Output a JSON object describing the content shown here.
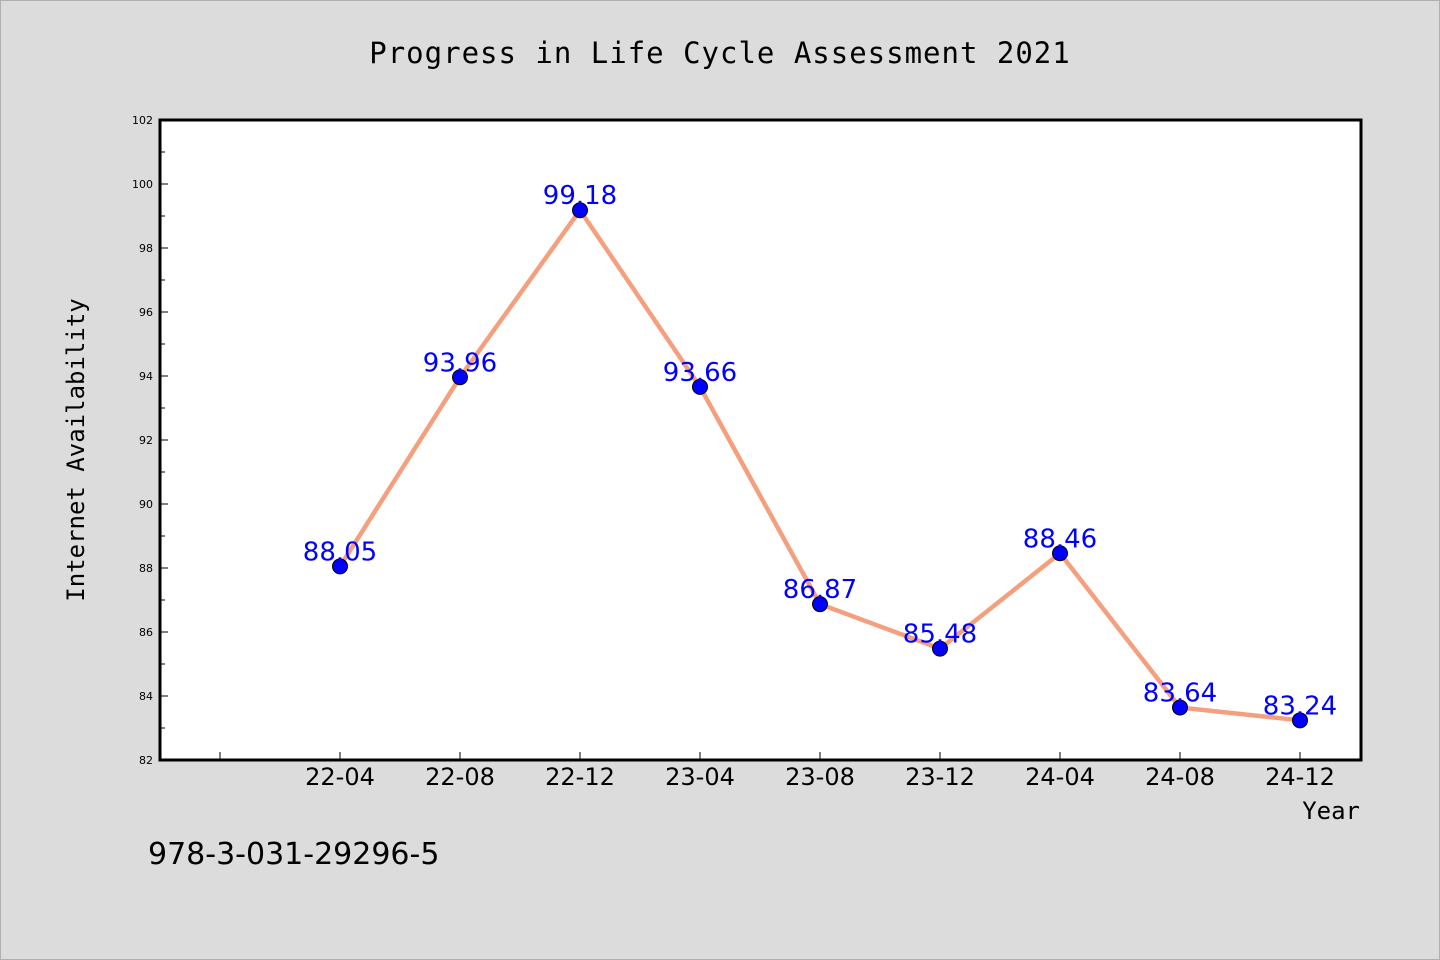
{
  "chart_data": {
    "type": "line",
    "title": "Progress in Life Cycle Assessment 2021",
    "xlabel": "Year",
    "ylabel": "Internet Availability",
    "categories": [
      "22-04",
      "22-08",
      "22-12",
      "23-04",
      "23-08",
      "23-12",
      "24-04",
      "24-08",
      "24-12"
    ],
    "series": [
      {
        "values": [
          88.05,
          93.96,
          99.18,
          93.66,
          86.87,
          85.48,
          88.46,
          83.64,
          83.24
        ]
      }
    ],
    "data_labels": [
      "88.05",
      "93.96",
      "99.18",
      "93.66",
      "86.87",
      "85.48",
      "88.46",
      "83.64",
      "83.24"
    ],
    "ylim": [
      82,
      102
    ],
    "yticks": [
      82,
      84,
      86,
      88,
      90,
      92,
      94,
      96,
      98,
      100,
      102
    ],
    "ytick_labels": [
      "82",
      "84",
      "86",
      "88",
      "90",
      "92",
      "94",
      "96",
      "98",
      "100",
      "102"
    ],
    "grid": false,
    "legend": "none",
    "colors": {
      "line": "#f4a07f",
      "marker": "#0000ff",
      "data_label": "#0000ff",
      "background": "#dcdcdc",
      "plot_background": "#ffffff"
    }
  },
  "footnote": "978-3-031-29296-5"
}
